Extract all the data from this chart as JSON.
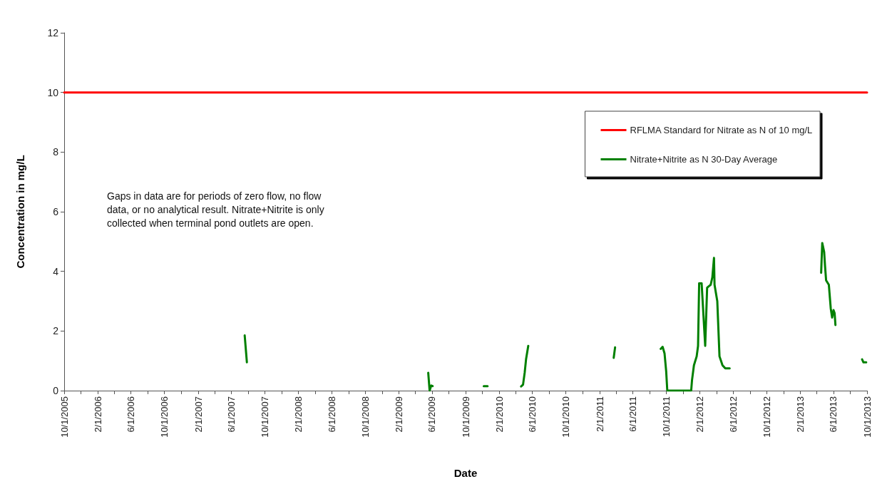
{
  "chart_data": {
    "type": "line",
    "xlabel": "Date",
    "ylabel": "Concentration in mg/L",
    "annotations": [
      "Gaps in data are for periods of zero flow, no flow data, or no analytical result. Nitrate+Nitrite is only collected when terminal pond outlets are open."
    ],
    "series": [
      {
        "name": "RFLMA Standard for Nitrate as N of 10 mg/L",
        "color": "#ff0000",
        "x": [
          "2005-10-01",
          "2013-10-01"
        ],
        "values": [
          10,
          10
        ]
      },
      {
        "name": "Nitrate+Nitrite as N 30-Day Average",
        "color": "#008000",
        "x": [
          "2007-07-20",
          "2007-07-28",
          "2008-06-01",
          "2009-05-18",
          "2009-05-23",
          "2009-05-29",
          "2009-06-03",
          "2009-09-01",
          "2009-12-06",
          "2009-12-20",
          "2010-03-01",
          "2010-04-21",
          "2010-04-28",
          "2010-05-04",
          "2010-05-09",
          "2010-05-17",
          "2010-10-01",
          "2011-03-24",
          "2011-03-29",
          "2011-06-01",
          "2011-09-11",
          "2011-09-18",
          "2011-09-25",
          "2011-10-01",
          "2011-10-05",
          "2011-10-14",
          "2011-12-31",
          "2012-01-03",
          "2012-01-10",
          "2012-01-20",
          "2012-01-25",
          "2012-01-29",
          "2012-02-07",
          "2012-02-20",
          "2012-02-27",
          "2012-03-04",
          "2012-03-11",
          "2012-03-17",
          "2012-03-23",
          "2012-03-25",
          "2012-04-04",
          "2012-04-12",
          "2012-04-23",
          "2012-05-03",
          "2012-05-19",
          "2012-10-01",
          "2013-04-17",
          "2013-04-21",
          "2013-04-28",
          "2013-05-01",
          "2013-05-05",
          "2013-05-15",
          "2013-05-22",
          "2013-05-27",
          "2013-06-01",
          "2013-06-05",
          "2013-06-08",
          "2013-08-01",
          "2013-09-13",
          "2013-09-18",
          "2013-09-28"
        ],
        "values": [
          1.85,
          0.95,
          null,
          0.6,
          0,
          0.17,
          0.15,
          null,
          0.15,
          0.15,
          null,
          0.14,
          0.2,
          0.6,
          1.05,
          1.5,
          null,
          1.1,
          1.45,
          null,
          1.4,
          1.47,
          1.25,
          0.65,
          0,
          0,
          0,
          0.35,
          0.85,
          1.15,
          1.5,
          3.6,
          3.6,
          1.5,
          3.45,
          3.5,
          3.55,
          3.8,
          4.45,
          3.55,
          3,
          1.15,
          0.85,
          0.75,
          0.75,
          null,
          3.95,
          4.95,
          4.65,
          4.2,
          3.7,
          3.55,
          2.75,
          2.45,
          2.7,
          2.6,
          2.2,
          null,
          1.05,
          0.95,
          0.95
        ]
      }
    ],
    "xlim": [
      "2005-10-01",
      "2013-10-01"
    ],
    "xticks": [
      {
        "value": "2005-10-01",
        "label": "10/1/2005"
      },
      {
        "value": "2005-12-01",
        "label": null
      },
      {
        "value": "2006-02-01",
        "label": "2/1/2006"
      },
      {
        "value": "2006-04-01",
        "label": null
      },
      {
        "value": "2006-06-01",
        "label": "6/1/2006"
      },
      {
        "value": "2006-08-01",
        "label": null
      },
      {
        "value": "2006-10-01",
        "label": "10/1/2006"
      },
      {
        "value": "2006-12-01",
        "label": null
      },
      {
        "value": "2007-02-01",
        "label": "2/1/2007"
      },
      {
        "value": "2007-04-01",
        "label": null
      },
      {
        "value": "2007-06-01",
        "label": "6/1/2007"
      },
      {
        "value": "2007-08-01",
        "label": null
      },
      {
        "value": "2007-10-01",
        "label": "10/1/2007"
      },
      {
        "value": "2007-12-01",
        "label": null
      },
      {
        "value": "2008-02-01",
        "label": "2/1/2008"
      },
      {
        "value": "2008-04-01",
        "label": null
      },
      {
        "value": "2008-06-01",
        "label": "6/1/2008"
      },
      {
        "value": "2008-08-01",
        "label": null
      },
      {
        "value": "2008-10-01",
        "label": "10/1/2008"
      },
      {
        "value": "2008-12-01",
        "label": null
      },
      {
        "value": "2009-02-01",
        "label": "2/1/2009"
      },
      {
        "value": "2009-04-01",
        "label": null
      },
      {
        "value": "2009-06-01",
        "label": "6/1/2009"
      },
      {
        "value": "2009-08-01",
        "label": null
      },
      {
        "value": "2009-10-01",
        "label": "10/1/2009"
      },
      {
        "value": "2009-12-01",
        "label": null
      },
      {
        "value": "2010-02-01",
        "label": "2/1/2010"
      },
      {
        "value": "2010-04-01",
        "label": null
      },
      {
        "value": "2010-06-01",
        "label": "6/1/2010"
      },
      {
        "value": "2010-08-01",
        "label": null
      },
      {
        "value": "2010-10-01",
        "label": "10/1/2010"
      },
      {
        "value": "2010-12-01",
        "label": null
      },
      {
        "value": "2011-02-01",
        "label": "2/1/2011"
      },
      {
        "value": "2011-04-01",
        "label": null
      },
      {
        "value": "2011-06-01",
        "label": "6/1/2011"
      },
      {
        "value": "2011-08-01",
        "label": null
      },
      {
        "value": "2011-10-01",
        "label": "10/1/2011"
      },
      {
        "value": "2011-12-01",
        "label": null
      },
      {
        "value": "2012-02-01",
        "label": "2/1/2012"
      },
      {
        "value": "2012-04-01",
        "label": null
      },
      {
        "value": "2012-06-01",
        "label": "6/1/2012"
      },
      {
        "value": "2012-08-01",
        "label": null
      },
      {
        "value": "2012-10-01",
        "label": "10/1/2012"
      },
      {
        "value": "2012-12-01",
        "label": null
      },
      {
        "value": "2013-02-01",
        "label": "2/1/2013"
      },
      {
        "value": "2013-04-01",
        "label": null
      },
      {
        "value": "2013-06-01",
        "label": "6/1/2013"
      },
      {
        "value": "2013-08-01",
        "label": null
      },
      {
        "value": "2013-10-01",
        "label": "10/1/2013"
      }
    ],
    "ylim": [
      0,
      12
    ],
    "yticks": [
      0,
      2,
      4,
      6,
      8,
      10,
      12
    ],
    "grid": false,
    "legend": "top right",
    "marker": "none",
    "line_style": "solid"
  }
}
